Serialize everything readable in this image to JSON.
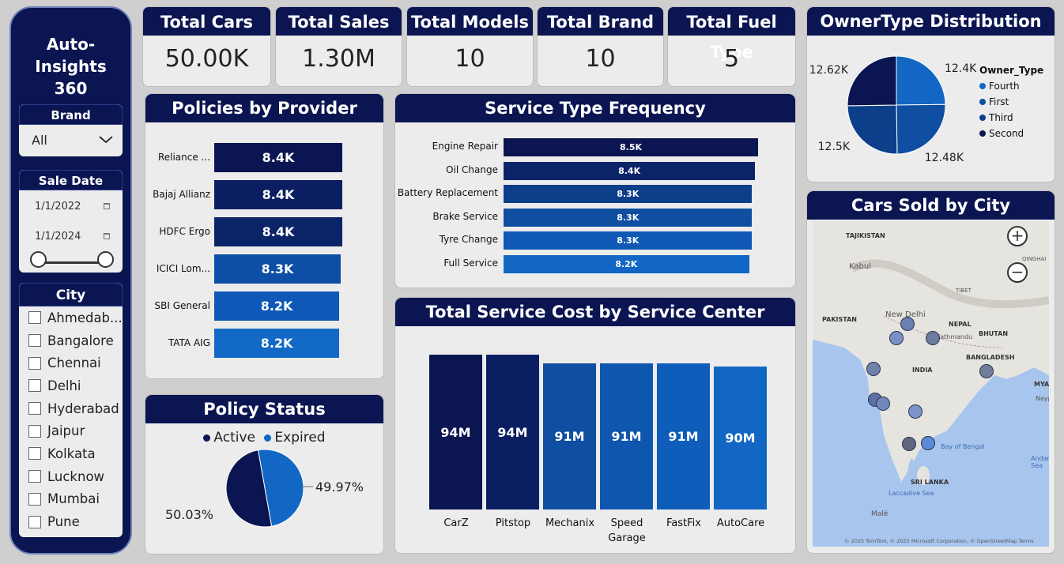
{
  "app": {
    "title_line1": "Auto-Insights",
    "title_line2": "360"
  },
  "filters": {
    "brand": {
      "label": "Brand",
      "value": "All"
    },
    "sale_date": {
      "label": "Sale Date",
      "start": "1/1/2022",
      "end": "1/1/2024"
    },
    "city": {
      "label": "City",
      "items": [
        "Ahmedab...",
        "Bangalore",
        "Chennai",
        "Delhi",
        "Hyderabad",
        "Jaipur",
        "Kolkata",
        "Lucknow",
        "Mumbai",
        "Pune"
      ]
    }
  },
  "kpis": [
    {
      "label": "Total Cars",
      "value": "50.00K"
    },
    {
      "label": "Total Sales",
      "value": "1.30M"
    },
    {
      "label": "Total Models",
      "value": "10"
    },
    {
      "label": "Total Brand",
      "value": "10"
    },
    {
      "label": "Total Fuel Type",
      "value": "5"
    }
  ],
  "policies": {
    "title": "Policies by Provider",
    "chart_data": {
      "type": "bar",
      "categories": [
        "Reliance ...",
        "Bajaj Allianz",
        "HDFC Ergo",
        "ICICI Lom...",
        "SBI General",
        "TATA AIG"
      ],
      "values": [
        8.4,
        8.4,
        8.4,
        8.3,
        8.2,
        8.2
      ],
      "labels": [
        "8.4K",
        "8.4K",
        "8.4K",
        "8.3K",
        "8.2K",
        "8.2K"
      ]
    }
  },
  "service_type": {
    "title": "Service Type Frequency",
    "chart_data": {
      "type": "bar",
      "categories": [
        "Engine Repair",
        "Oil Change",
        "Battery Replacement",
        "Brake Service",
        "Tyre Change",
        "Full Service"
      ],
      "values": [
        8.5,
        8.4,
        8.3,
        8.3,
        8.3,
        8.2
      ],
      "labels": [
        "8.5K",
        "8.4K",
        "8.3K",
        "8.3K",
        "8.3K",
        "8.2K"
      ]
    }
  },
  "service_cost": {
    "title": "Total Service Cost by Service Center",
    "chart_data": {
      "type": "bar",
      "categories": [
        "CarZ",
        "Pitstop",
        "Mechanix",
        "Speed Garage",
        "FastFix",
        "AutoCare"
      ],
      "values": [
        94,
        94,
        91,
        91,
        91,
        90
      ],
      "labels": [
        "94M",
        "94M",
        "91M",
        "91M",
        "91M",
        "90M"
      ]
    }
  },
  "policy_status": {
    "title": "Policy Status",
    "chart_data": {
      "type": "pie",
      "categories": [
        "Active",
        "Expired"
      ],
      "values": [
        50.03,
        49.97
      ],
      "labels": [
        "50.03%",
        "49.97%"
      ],
      "colors": [
        "#0b1552",
        "#1267c4"
      ]
    }
  },
  "owner_type": {
    "title": "OwnerType Distribution",
    "chart_data": {
      "type": "pie",
      "legend_title": "Owner_Type",
      "categories": [
        "Fourth",
        "First",
        "Third",
        "Second"
      ],
      "values": [
        12.4,
        12.48,
        12.5,
        12.62
      ],
      "labels": [
        "12.4K",
        "12.48K",
        "12.5K",
        "12.62K"
      ],
      "colors": [
        "#1267c4",
        "#0f4ea0",
        "#0d3e8a",
        "#0b1552"
      ]
    }
  },
  "map": {
    "title": "Cars Sold by City",
    "countries": [
      "TAJIKISTAN",
      "PAKISTAN",
      "NEPAL",
      "BHUTAN",
      "INDIA",
      "BANGLADESH",
      "MYANM",
      "SRI LANKA"
    ],
    "places": [
      "Kabul",
      "New Delhi",
      "Kathmandu",
      "Naypyi",
      "Bay of Bengal",
      "Andaman Sea",
      "Laccadive Sea",
      "Malé",
      "TIBET",
      "QINGHAI"
    ],
    "attribution": "© 2025 TomTom, © 2025 Microsoft Corporation, © OpenStreetMap  Terms",
    "zoom_in": "+",
    "zoom_out": "−"
  }
}
